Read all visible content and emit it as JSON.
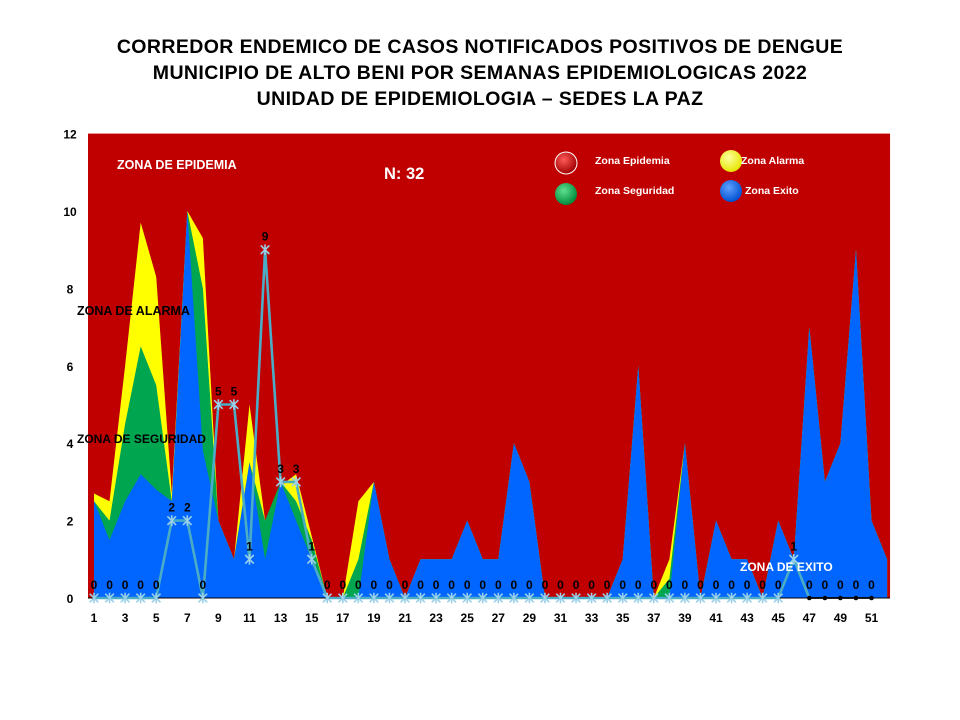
{
  "title_lines": [
    "CORREDOR ENDEMICO DE CASOS NOTIFICADOS POSITIVOS DE DENGUE",
    "MUNICIPIO DE ALTO BENI POR SEMANAS EPIDEMIOLOGICAS 2022",
    "UNIDAD DE EPIDEMIOLOGIA – SEDES LA PAZ"
  ],
  "chart_data": {
    "type": "area",
    "title": "CORREDOR ENDEMICO DE CASOS NOTIFICADOS POSITIVOS DE DENGUE MUNICIPIO DE ALTO BENI POR SEMANAS EPIDEMIOLOGICAS 2022 UNIDAD DE EPIDEMIOLOGIA – SEDES LA PAZ",
    "xlabel": "",
    "ylabel": "",
    "ylim": [
      0,
      12
    ],
    "yticks": [
      0,
      2,
      4,
      6,
      8,
      10,
      12
    ],
    "x": [
      1,
      2,
      3,
      4,
      5,
      6,
      7,
      8,
      9,
      10,
      11,
      12,
      13,
      14,
      15,
      16,
      17,
      18,
      19,
      20,
      21,
      22,
      23,
      24,
      25,
      26,
      27,
      28,
      29,
      30,
      31,
      32,
      33,
      34,
      35,
      36,
      37,
      38,
      39,
      40,
      41,
      42,
      43,
      44,
      45,
      46,
      47,
      48,
      49,
      50,
      51,
      52
    ],
    "xtick_labels": [
      "1",
      "3",
      "5",
      "7",
      "9",
      "11",
      "13",
      "15",
      "17",
      "19",
      "21",
      "23",
      "25",
      "27",
      "29",
      "31",
      "33",
      "35",
      "37",
      "39",
      "41",
      "43",
      "45",
      "47",
      "49",
      "51"
    ],
    "series": [
      {
        "name": "Zona Epidemia",
        "color": "#C00000",
        "values": [
          12,
          12,
          12,
          12,
          12,
          12,
          12,
          12,
          12,
          12,
          12,
          12,
          12,
          12,
          12,
          12,
          12,
          12,
          12,
          12,
          12,
          12,
          12,
          12,
          12,
          12,
          12,
          12,
          12,
          12,
          12,
          12,
          12,
          12,
          12,
          12,
          12,
          12,
          12,
          12,
          12,
          12,
          12,
          12,
          12,
          12,
          12,
          12,
          12,
          12,
          12,
          12
        ]
      },
      {
        "name": "Zona Alarma",
        "color": "#FFFF00",
        "values": [
          2.7,
          2.5,
          6,
          9.7,
          8.3,
          2.7,
          10,
          9.3,
          2,
          1,
          5,
          2,
          2.9,
          3.2,
          1.6,
          0,
          0,
          2.5,
          3,
          1,
          0,
          1,
          1,
          1,
          2,
          1,
          1,
          4,
          3,
          0,
          0,
          0,
          0,
          0,
          1,
          6,
          0,
          1,
          4,
          0,
          2,
          1,
          1,
          0,
          2,
          1,
          7,
          3,
          4,
          9,
          2,
          1
        ]
      },
      {
        "name": "Zona Seguridad",
        "color": "#00A550",
        "values": [
          2.5,
          2,
          4.5,
          6.5,
          5.5,
          2.5,
          10,
          8,
          2,
          1,
          3.5,
          2,
          3,
          2.5,
          1.5,
          0,
          0,
          1,
          3,
          1,
          0,
          1,
          1,
          1,
          2,
          1,
          1,
          4,
          3,
          0,
          0,
          0,
          0,
          0,
          1,
          6,
          0,
          0.5,
          4,
          0,
          2,
          1,
          1,
          0,
          2,
          1,
          7,
          3,
          4,
          9,
          2,
          1
        ]
      },
      {
        "name": "Zona Exito",
        "color": "#0066FF",
        "values": [
          2.5,
          1.5,
          2.5,
          3.2,
          2.8,
          2.5,
          10,
          3.8,
          2,
          1,
          3.5,
          1,
          3,
          2,
          1,
          0,
          0,
          0,
          3,
          1,
          0,
          1,
          1,
          1,
          2,
          1,
          1,
          4,
          3,
          0,
          0,
          0,
          0,
          0,
          1,
          6,
          0,
          0,
          4,
          0,
          2,
          1,
          1,
          0,
          2,
          1,
          7,
          3,
          4,
          9,
          2,
          1
        ]
      },
      {
        "name": "Casos 2022",
        "color": "#4BACC6",
        "values": [
          0,
          0,
          0,
          0,
          0,
          2,
          2,
          0,
          5,
          5,
          1,
          9,
          3,
          3,
          1,
          0,
          0,
          0,
          0,
          0,
          0,
          0,
          0,
          0,
          0,
          0,
          0,
          0,
          0,
          0,
          0,
          0,
          0,
          0,
          0,
          0,
          0,
          0,
          0,
          0,
          0,
          0,
          0,
          0,
          0,
          1,
          0,
          0,
          0,
          0,
          0,
          null
        ]
      }
    ],
    "data_labels": [
      "0",
      "0",
      "0",
      "0",
      "0",
      "2",
      "2",
      "0",
      "5",
      "5",
      "1",
      "9",
      "3",
      "3",
      "1",
      "0",
      "0",
      "0",
      "0",
      "0",
      "0",
      "0",
      "0",
      "0",
      "0",
      "0",
      "0",
      "0",
      "0",
      "0",
      "0",
      "0",
      "0",
      "0",
      "0",
      "0",
      "0",
      "0",
      "0",
      "0",
      "0",
      "0",
      "0",
      "0",
      "0",
      "1",
      "0",
      "0",
      "0",
      "0",
      "0"
    ],
    "annotations": {
      "n_label": "N: 32",
      "zona_epidemia": "ZONA DE EPIDEMIA",
      "zona_alarma": "ZONA DE ALARMA",
      "zona_seguridad": "ZONA DE  SEGURIDAD",
      "zona_exito": "ZONA DE  EXITO"
    },
    "legend": {
      "placement": "top-right",
      "items": [
        {
          "label": "Zona Epidemia",
          "color": "#C00000"
        },
        {
          "label": "Zona Alarma",
          "color": "#FFFF00"
        },
        {
          "label": "Zona Seguridad",
          "color": "#00A550"
        },
        {
          "label": "Zona Exito",
          "color": "#0066FF"
        }
      ]
    }
  }
}
